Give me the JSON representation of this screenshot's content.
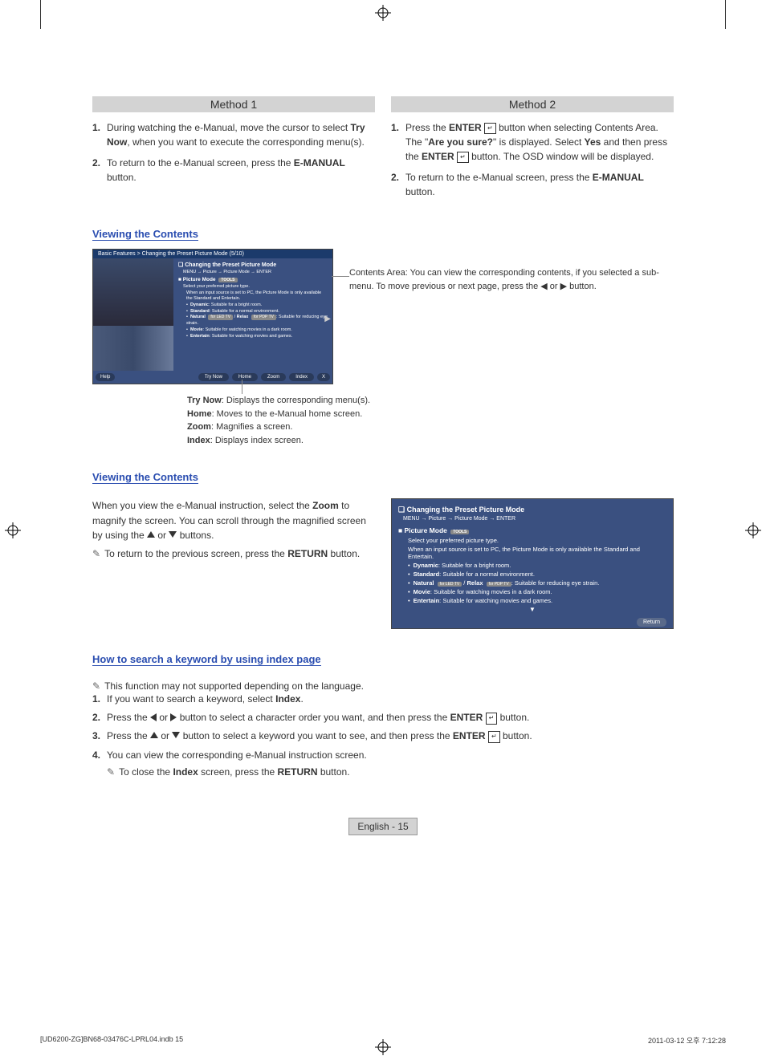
{
  "methods": {
    "m1": {
      "title": "Method 1",
      "steps": [
        {
          "segs": [
            {
              "t": "During watching the e-Manual, move the cursor to select "
            },
            {
              "t": "Try Now",
              "b": true
            },
            {
              "t": ", when you want to execute the corresponding menu(s)."
            }
          ]
        },
        {
          "segs": [
            {
              "t": "To return to the e-Manual screen, press the "
            },
            {
              "t": "E-MANUAL",
              "b": true
            },
            {
              "t": " button."
            }
          ]
        }
      ]
    },
    "m2": {
      "title": "Method 2",
      "steps": [
        {
          "segs": [
            {
              "t": "Press the "
            },
            {
              "t": "ENTER",
              "b": true
            },
            {
              "icon": "enter"
            },
            {
              "t": " button when selecting Contents Area. The \""
            },
            {
              "t": "Are you sure?",
              "b": true
            },
            {
              "t": "\" is displayed. Select "
            },
            {
              "t": "Yes",
              "b": true
            },
            {
              "t": " and then press the "
            },
            {
              "t": "ENTER",
              "b": true
            },
            {
              "icon": "enter"
            },
            {
              "t": " button. The OSD window will be displayed."
            }
          ]
        },
        {
          "segs": [
            {
              "t": "To return to the e-Manual screen, press the "
            },
            {
              "t": "E-MANUAL",
              "b": true
            },
            {
              "t": " button."
            }
          ]
        }
      ]
    }
  },
  "viewing1": {
    "title": "Viewing the Contents",
    "callout": "Contents Area: You can view the corresponding contents, if you selected a sub-menu. To move previous or next page, press the ◀ or ▶ button.",
    "below": [
      {
        "segs": [
          {
            "t": "Try Now",
            "b": true
          },
          {
            "t": ": Displays the corresponding menu(s)."
          }
        ]
      },
      {
        "segs": [
          {
            "t": "Home",
            "b": true
          },
          {
            "t": ": Moves to the e-Manual home screen."
          }
        ]
      },
      {
        "segs": [
          {
            "t": "Zoom",
            "b": true
          },
          {
            "t": ": Magnifies a screen."
          }
        ]
      },
      {
        "segs": [
          {
            "t": "Index",
            "b": true
          },
          {
            "t": ": Displays index screen."
          }
        ]
      }
    ]
  },
  "manual_ss": {
    "breadcrumb": "Basic Features > Changing the Preset Picture Mode (5/10)",
    "section": "Changing the Preset Picture Mode",
    "path": "MENU → Picture → Picture Mode → ENTER",
    "sub": "Picture Mode",
    "tools_badge": "TOOLS",
    "desc": "Select your preferred picture type.",
    "note": "When an input source is set to PC, the Picture Mode is only available the Standard and Entertain.",
    "items": [
      {
        "segs": [
          {
            "t": "Dynamic",
            "b": true
          },
          {
            "t": ": Suitable for a bright room."
          }
        ]
      },
      {
        "segs": [
          {
            "t": "Standard",
            "b": true
          },
          {
            "t": ": Suitable for a normal environment."
          }
        ]
      },
      {
        "segs": [
          {
            "t": "Natural ",
            "b": true
          },
          {
            "badge": "for LED TV"
          },
          {
            "t": " / "
          },
          {
            "t": "Relax ",
            "b": true
          },
          {
            "badge": "for PDP TV"
          },
          {
            "t": ": Suitable for reducing eye strain."
          }
        ]
      },
      {
        "segs": [
          {
            "t": "Movie",
            "b": true
          },
          {
            "t": ": Suitable for watching movies in a dark room."
          }
        ]
      },
      {
        "segs": [
          {
            "t": "Entertain",
            "b": true
          },
          {
            "t": ": Suitable for watching movies and games."
          }
        ]
      }
    ],
    "help": "Help",
    "buttons": [
      "Try Now",
      "Home",
      "Zoom",
      "Index"
    ],
    "close": "X"
  },
  "viewing2": {
    "title": "Viewing the Contents",
    "p1_segs": [
      {
        "t": "When you view the e-Manual instruction, select the "
      },
      {
        "t": "Zoom",
        "b": true
      },
      {
        "t": " to magnify the screen. You can scroll through the magnified screen by using the "
      },
      {
        "icon": "up"
      },
      {
        "t": " or "
      },
      {
        "icon": "down"
      },
      {
        "t": " buttons."
      }
    ],
    "p2_segs": [
      {
        "t": "To return to the previous screen, press the "
      },
      {
        "t": "RETURN",
        "b": true
      },
      {
        "t": " button."
      }
    ],
    "zoom_return": "Return"
  },
  "index": {
    "title": "How to search a keyword by using index page",
    "note1": "This function may not supported depending on the language.",
    "steps": [
      {
        "segs": [
          {
            "t": "If you want to search a keyword, select "
          },
          {
            "t": "Index",
            "b": true
          },
          {
            "t": "."
          }
        ]
      },
      {
        "segs": [
          {
            "t": "Press the "
          },
          {
            "icon": "left"
          },
          {
            "t": " or "
          },
          {
            "icon": "right"
          },
          {
            "t": " button to select a character order you want, and then press the "
          },
          {
            "t": "ENTER",
            "b": true
          },
          {
            "icon": "enter"
          },
          {
            "t": " button."
          }
        ]
      },
      {
        "segs": [
          {
            "t": "Press the "
          },
          {
            "icon": "up"
          },
          {
            "t": " or "
          },
          {
            "icon": "down"
          },
          {
            "t": " button to select a keyword you want to see, and then press the "
          },
          {
            "t": "ENTER",
            "b": true
          },
          {
            "icon": "enter"
          },
          {
            "t": " button."
          }
        ]
      },
      {
        "segs": [
          {
            "t": "You can view the corresponding e-Manual instruction screen."
          }
        ]
      }
    ],
    "note2_segs": [
      {
        "t": "To close the "
      },
      {
        "t": "Index",
        "b": true
      },
      {
        "t": " screen, press the "
      },
      {
        "t": "RETURN",
        "b": true
      },
      {
        "t": " button."
      }
    ]
  },
  "footer": {
    "lang": "English - 15"
  },
  "doc_footer": {
    "left": "[UD6200-ZG]BN68-03476C-LPRL04.indb   15",
    "right": "2011-03-12   오후 7:12:28"
  },
  "colors": {
    "heading": "#2a4db0",
    "method_bar": "#d3d3d3",
    "frame_blue": "#3a5080",
    "frame_header": "#1b3a6b"
  }
}
